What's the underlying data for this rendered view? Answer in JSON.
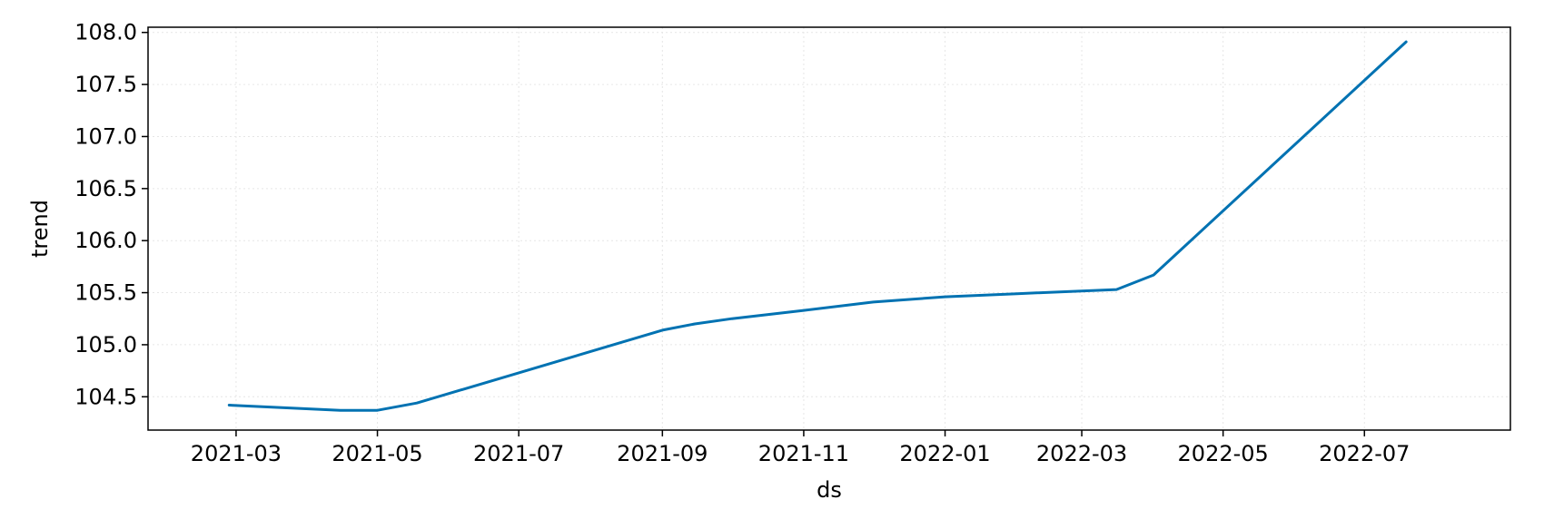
{
  "chart_data": {
    "type": "line",
    "title": "",
    "xlabel": "ds",
    "ylabel": "trend",
    "x_axis_type": "date",
    "xlim": [
      "2021-01-22",
      "2022-09-02"
    ],
    "ylim": [
      104.18,
      108.05
    ],
    "x_ticks": [
      "2021-03",
      "2021-05",
      "2021-07",
      "2021-09",
      "2021-11",
      "2022-01",
      "2022-03",
      "2022-05",
      "2022-07"
    ],
    "y_ticks": [
      "104.5",
      "105.0",
      "105.5",
      "106.0",
      "106.5",
      "107.0",
      "107.5",
      "108.0"
    ],
    "grid": true,
    "legend": "none",
    "series": [
      {
        "color": "#0072B2",
        "x": [
          "2021-02-26",
          "2021-04-15",
          "2021-05-01",
          "2021-05-18",
          "2021-07-01",
          "2021-09-01",
          "2021-09-15",
          "2021-10-01",
          "2021-11-01",
          "2021-12-01",
          "2022-01-01",
          "2022-02-01",
          "2022-03-16",
          "2022-04-01",
          "2022-07-19"
        ],
        "y": [
          104.42,
          104.37,
          104.37,
          104.44,
          104.73,
          105.14,
          105.2,
          105.25,
          105.33,
          105.41,
          105.46,
          105.49,
          105.53,
          105.67,
          107.91
        ]
      }
    ]
  }
}
